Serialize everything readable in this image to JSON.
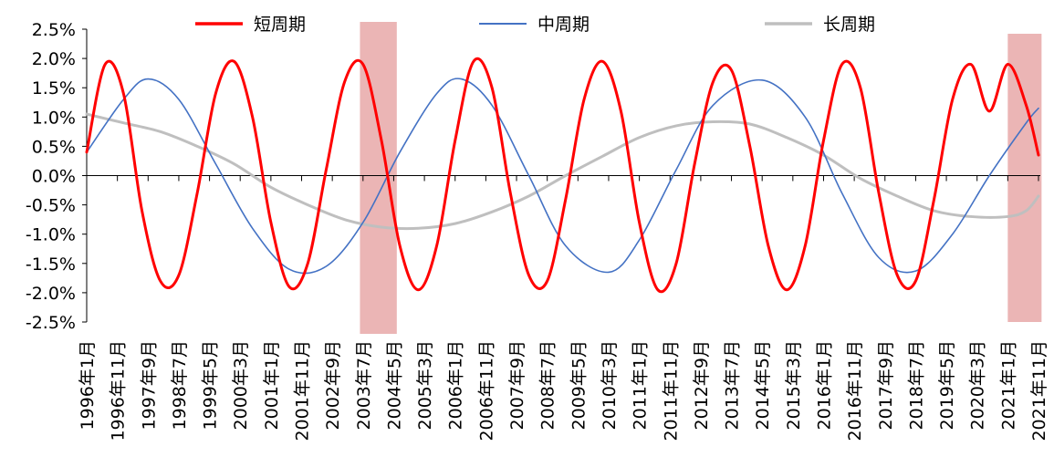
{
  "chart_data": {
    "type": "line",
    "title": "",
    "xlabel": "",
    "ylabel": "",
    "ylim": [
      -0.025,
      0.025
    ],
    "y_tick_format": "percent",
    "yticks": [
      0.025,
      0.02,
      0.015,
      0.01,
      0.005,
      0.0,
      -0.005,
      -0.01,
      -0.015,
      -0.02,
      -0.025
    ],
    "ytick_labels": [
      "2.5%",
      "2.0%",
      "1.5%",
      "1.0%",
      "0.5%",
      "0.0%",
      "-0.5%",
      "-1.0%",
      "-1.5%",
      "-2.0%",
      "-2.5%"
    ],
    "x_range": [
      "1996-01",
      "2021-11"
    ],
    "xtick_labels": [
      "1996年1月",
      "1996年11月",
      "1997年9月",
      "1998年7月",
      "1999年5月",
      "2000年3月",
      "2001年1月",
      "2001年11月",
      "2002年9月",
      "2003年7月",
      "2004年5月",
      "2005年3月",
      "2006年1月",
      "2006年11月",
      "2007年9月",
      "2008年7月",
      "2009年5月",
      "2010年3月",
      "2011年1月",
      "2011年11月",
      "2012年9月",
      "2013年7月",
      "2014年5月",
      "2015年3月",
      "2016年1月",
      "2016年11月",
      "2017年9月",
      "2018年7月",
      "2019年5月",
      "2020年3月",
      "2021年1月",
      "2021年11月"
    ],
    "grid": false,
    "legend_position": "top",
    "shaded_periods": [
      {
        "start": "2003-06",
        "end": "2004-06",
        "color": "#e8a8a8"
      },
      {
        "start": "2021-01",
        "end": "2021-12",
        "color": "#e8a8a8"
      }
    ],
    "series": [
      {
        "name": "短周期",
        "color": "#ff0000",
        "x": [
          "1996-01",
          "1996-07",
          "1997-01",
          "1997-07",
          "1998-01",
          "1998-07",
          "1999-01",
          "1999-07",
          "2000-01",
          "2000-07",
          "2001-01",
          "2001-07",
          "2002-01",
          "2002-07",
          "2003-01",
          "2003-07",
          "2004-01",
          "2004-07",
          "2005-01",
          "2005-07",
          "2006-01",
          "2006-07",
          "2007-01",
          "2007-07",
          "2008-01",
          "2008-07",
          "2009-01",
          "2009-07",
          "2010-01",
          "2010-07",
          "2011-01",
          "2011-07",
          "2012-01",
          "2012-07",
          "2013-01",
          "2013-07",
          "2014-01",
          "2014-07",
          "2015-01",
          "2015-07",
          "2016-01",
          "2016-07",
          "2017-01",
          "2017-07",
          "2018-01",
          "2018-07",
          "2019-01",
          "2019-07",
          "2020-01",
          "2020-07",
          "2021-01",
          "2021-07",
          "2021-11"
        ],
        "values": [
          0.004,
          0.019,
          0.014,
          -0.006,
          -0.018,
          -0.017,
          -0.003,
          0.014,
          0.0195,
          0.01,
          -0.008,
          -0.019,
          -0.015,
          0.001,
          0.016,
          0.019,
          0.006,
          -0.012,
          -0.0195,
          -0.012,
          0.006,
          0.0195,
          0.015,
          -0.003,
          -0.017,
          -0.018,
          -0.004,
          0.013,
          0.0195,
          0.011,
          -0.008,
          -0.0195,
          -0.015,
          0.002,
          0.016,
          0.018,
          0.005,
          -0.012,
          -0.0195,
          -0.012,
          0.006,
          0.019,
          0.015,
          -0.003,
          -0.017,
          -0.018,
          -0.004,
          0.013,
          0.019,
          0.011,
          0.019,
          0.012,
          0.0035
        ]
      },
      {
        "name": "中周期",
        "color": "#4472c4",
        "x": [
          "1996-01",
          "1997-01",
          "1997-09",
          "1998-07",
          "1999-07",
          "2000-07",
          "2001-07",
          "2002-07",
          "2003-07",
          "2004-07",
          "2005-07",
          "2006-03",
          "2007-01",
          "2008-01",
          "2009-01",
          "2010-03",
          "2011-01",
          "2012-01",
          "2013-01",
          "2014-05",
          "2015-07",
          "2016-07",
          "2017-07",
          "2018-07",
          "2019-07",
          "2020-07",
          "2021-07",
          "2021-11"
        ],
        "values": [
          0.004,
          0.013,
          0.0165,
          0.013,
          0.002,
          -0.009,
          -0.016,
          -0.0155,
          -0.008,
          0.004,
          0.014,
          0.0165,
          0.012,
          0.0,
          -0.012,
          -0.0165,
          -0.011,
          0.001,
          0.012,
          0.0163,
          0.01,
          -0.003,
          -0.014,
          -0.0163,
          -0.01,
          0.0,
          0.009,
          0.0115
        ]
      },
      {
        "name": "长周期",
        "color": "#bfbfbf",
        "x": [
          "1996-01",
          "1997-01",
          "1998-01",
          "1999-01",
          "2000-01",
          "2001-01",
          "2002-01",
          "2003-01",
          "2004-01",
          "2005-01",
          "2006-01",
          "2007-01",
          "2008-01",
          "2009-01",
          "2010-01",
          "2011-01",
          "2012-01",
          "2013-01",
          "2014-01",
          "2015-01",
          "2016-01",
          "2017-01",
          "2018-01",
          "2019-01",
          "2020-01",
          "2021-01",
          "2021-07",
          "2021-11"
        ],
        "values": [
          0.0105,
          0.009,
          0.0075,
          0.005,
          0.002,
          -0.002,
          -0.005,
          -0.0075,
          -0.0088,
          -0.009,
          -0.0082,
          -0.0062,
          -0.0035,
          0.0,
          0.0033,
          0.0065,
          0.0085,
          0.0092,
          0.0088,
          0.0065,
          0.0035,
          -0.0005,
          -0.0035,
          -0.006,
          -0.007,
          -0.007,
          -0.006,
          -0.0035
        ]
      }
    ]
  }
}
